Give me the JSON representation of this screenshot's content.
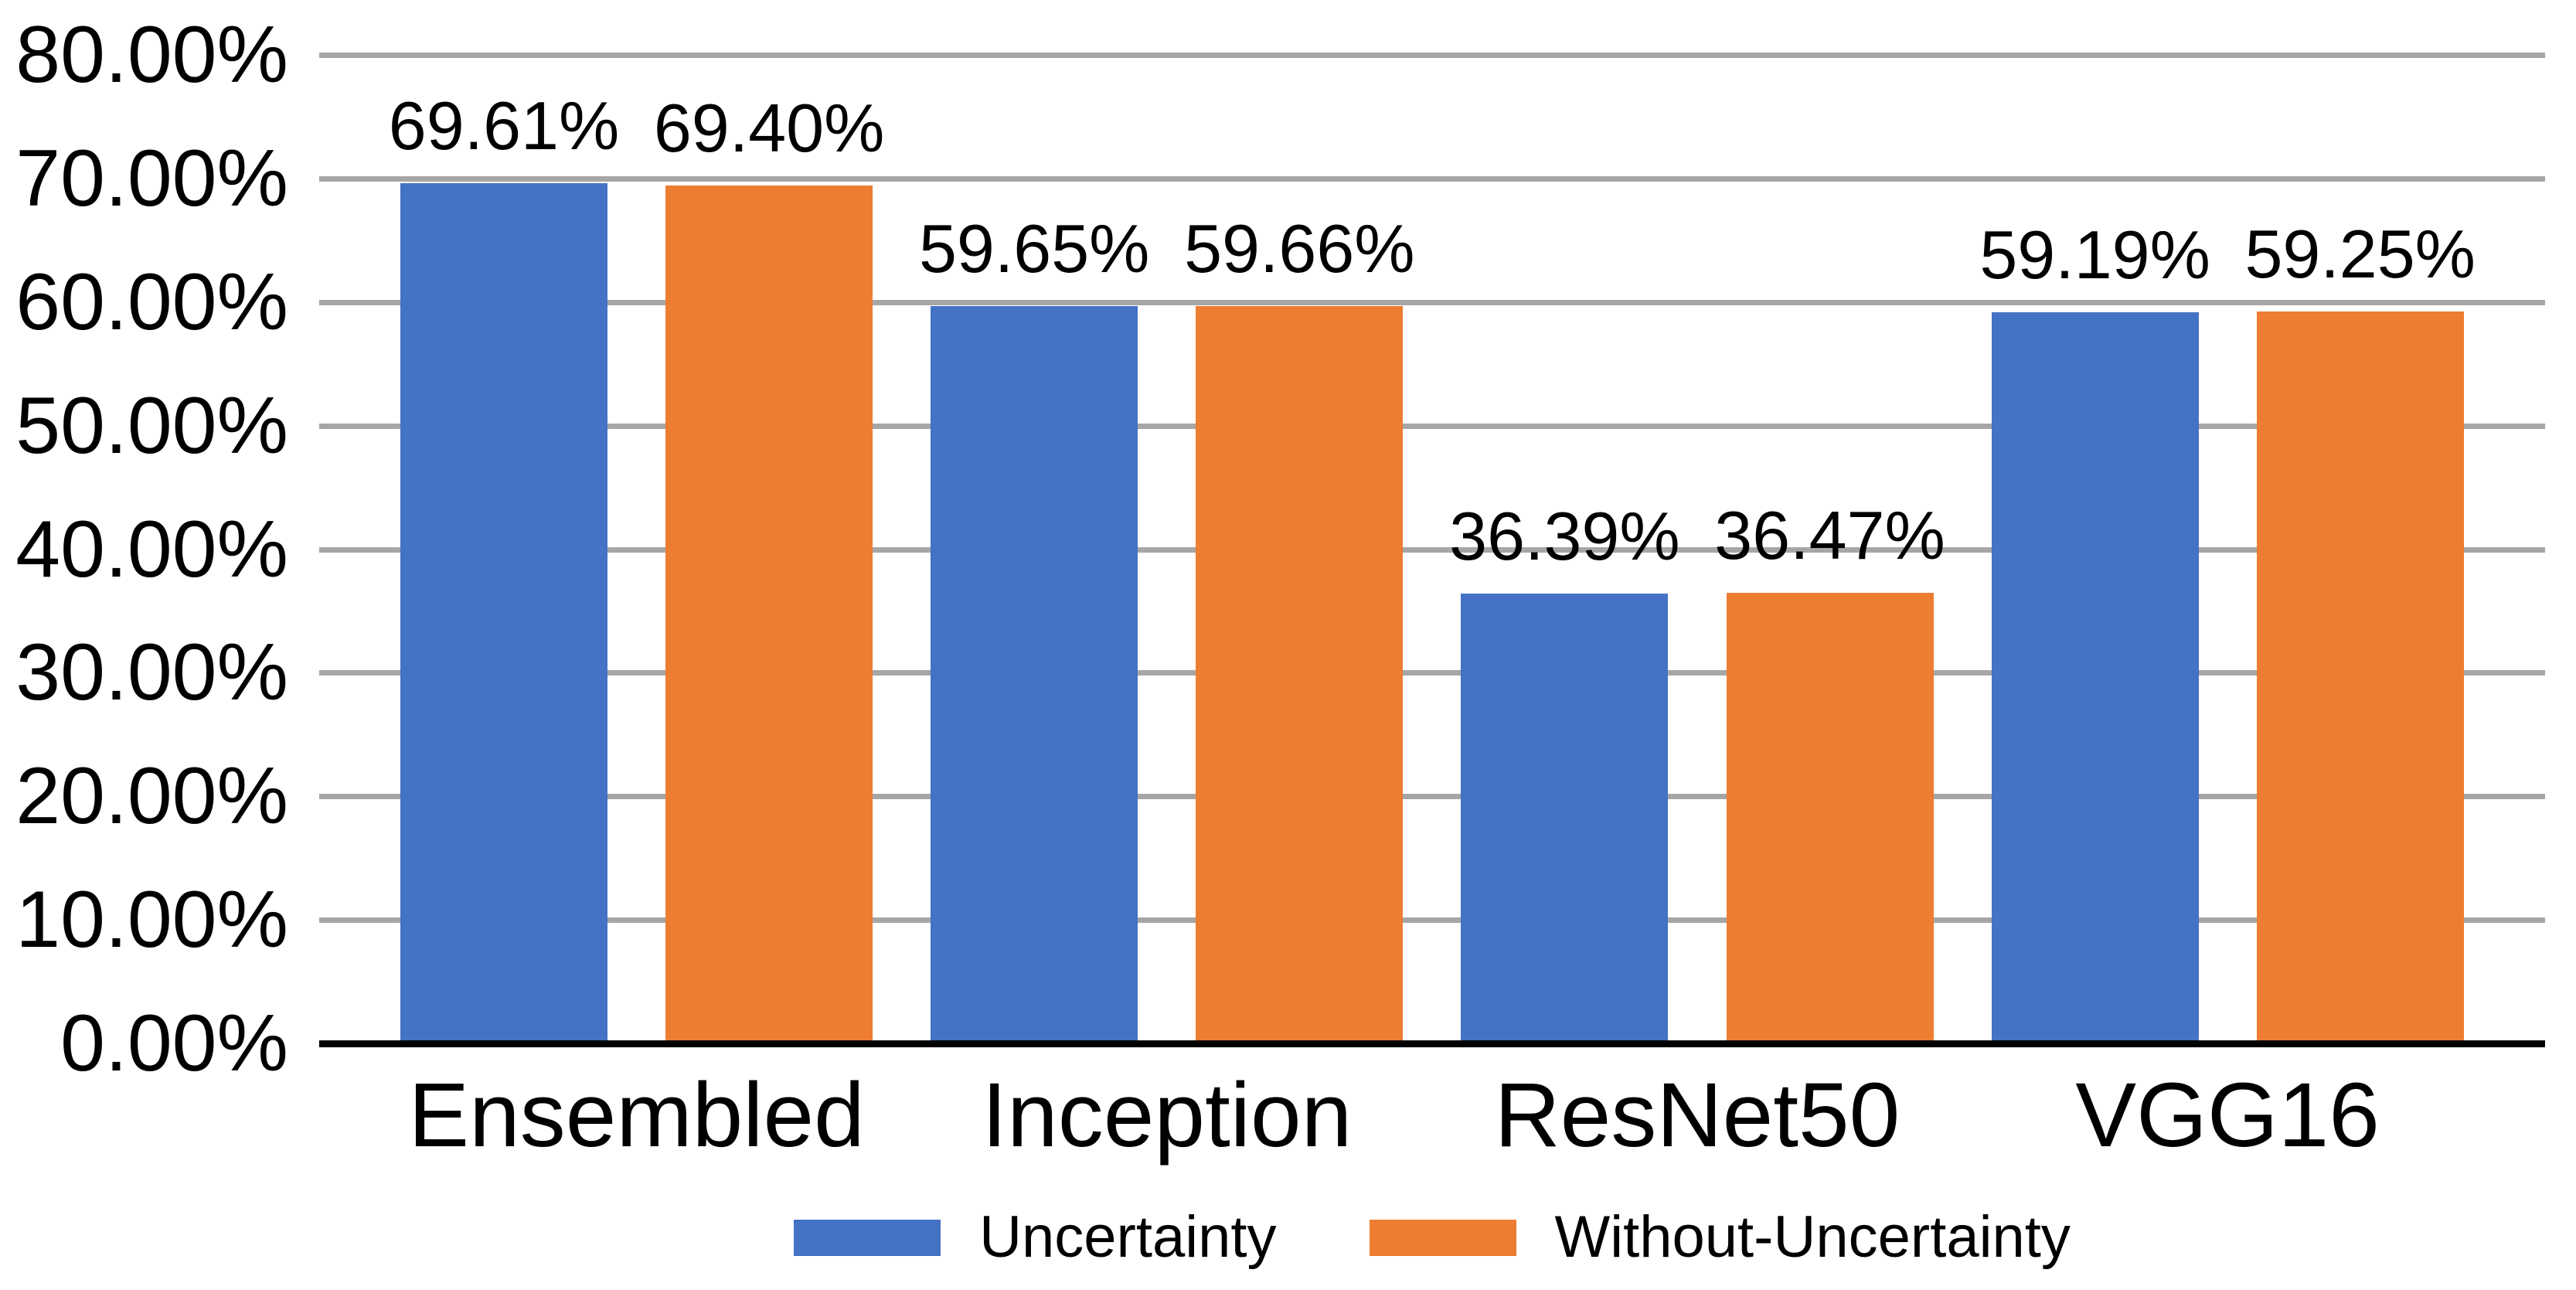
{
  "chart_data": {
    "type": "bar",
    "title": "",
    "xlabel": "",
    "ylabel": "",
    "categories": [
      "Ensembled",
      "Inception",
      "ResNet50",
      "VGG16"
    ],
    "series": [
      {
        "name": "Uncertainty",
        "color": "#4472C4",
        "values": [
          69.61,
          59.65,
          36.39,
          59.19
        ],
        "labels": [
          "69.61%",
          "59.65%",
          "36.39%",
          "59.19%"
        ]
      },
      {
        "name": "Without-Uncertainty",
        "color": "#ED7D31",
        "values": [
          69.4,
          59.66,
          36.47,
          59.25
        ],
        "labels": [
          "69.40%",
          "59.66%",
          "36.47%",
          "59.25%"
        ]
      }
    ],
    "y_axis": {
      "min": 0,
      "max": 80,
      "ticks": [
        {
          "label": "0.00%",
          "value": 0
        },
        {
          "label": "10.00%",
          "value": 10
        },
        {
          "label": "20.00%",
          "value": 20
        },
        {
          "label": "30.00%",
          "value": 30
        },
        {
          "label": "40.00%",
          "value": 40
        },
        {
          "label": "50.00%",
          "value": 50
        },
        {
          "label": "60.00%",
          "value": 60
        },
        {
          "label": "70.00%",
          "value": 70
        },
        {
          "label": "80.00%",
          "value": 80
        }
      ]
    },
    "grid": true,
    "legend_position": "bottom",
    "colors": {
      "gridline": "#A6A6A6",
      "axis_line": "#000000",
      "text": "#000000",
      "background": "#FFFFFF"
    }
  }
}
